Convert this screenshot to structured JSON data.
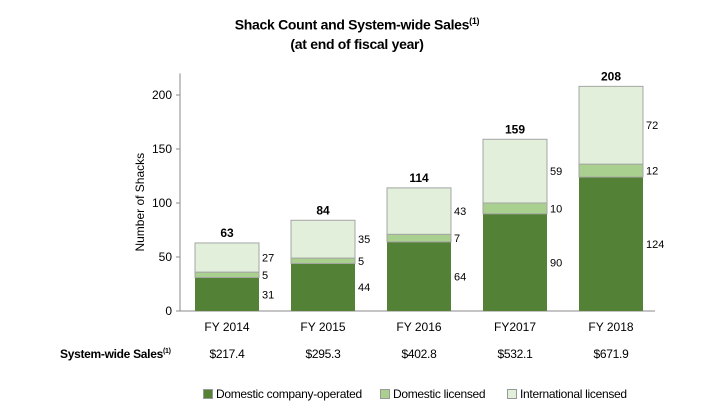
{
  "chart_data": {
    "type": "bar",
    "stacked": true,
    "title": "Shack Count and System-wide Sales",
    "title_superscript": "(1)",
    "subtitle": "(at end of fiscal year)",
    "ylabel": "Number of Shacks",
    "xlabel": "",
    "ylim": [
      0,
      220
    ],
    "yticks": [
      0,
      50,
      100,
      150,
      200
    ],
    "grid": false,
    "categories": [
      "FY 2014",
      "FY 2015",
      "FY 2016",
      "FY2017",
      "FY 2018"
    ],
    "series": [
      {
        "name": "Domestic company-operated",
        "color": "#538135",
        "values": [
          31,
          44,
          64,
          90,
          124
        ]
      },
      {
        "name": "Domestic licensed",
        "color": "#a9d08e",
        "values": [
          5,
          5,
          7,
          10,
          12
        ]
      },
      {
        "name": "International licensed",
        "color": "#e2efda",
        "values": [
          27,
          35,
          43,
          59,
          72
        ]
      }
    ],
    "totals": [
      63,
      84,
      114,
      159,
      208
    ],
    "legend_position": "bottom"
  },
  "sales": {
    "label": "System-wide Sales",
    "label_superscript": "(1)",
    "values": [
      "$217.4",
      "$295.3",
      "$402.8",
      "$532.1",
      "$671.9"
    ]
  }
}
